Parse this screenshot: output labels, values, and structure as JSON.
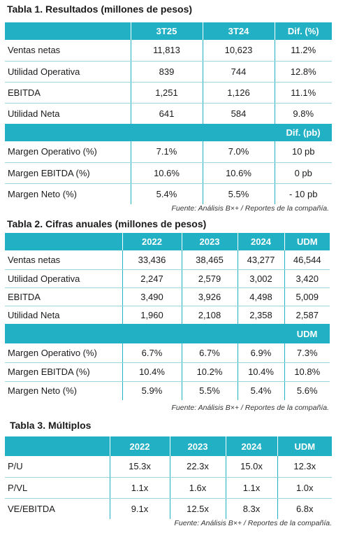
{
  "table1": {
    "title": "Tabla 1. Resultados (millones de pesos)",
    "headers": [
      "",
      "3T25",
      "3T24",
      "Dif. (%)"
    ],
    "rows": [
      [
        "Ventas netas",
        "11,813",
        "10,623",
        "11.2%"
      ],
      [
        "Utilidad Operativa",
        "839",
        "744",
        "12.8%"
      ],
      [
        "EBITDA",
        "1,251",
        "1,126",
        "11.1%"
      ],
      [
        "Utilidad Neta",
        "641",
        "584",
        "9.8%"
      ]
    ],
    "subheader": [
      "",
      "",
      "",
      "Dif. (pb)"
    ],
    "rows2": [
      [
        "Margen Operativo (%)",
        "7.1%",
        "7.0%",
        "10 pb"
      ],
      [
        "Margen EBITDA (%)",
        "10.6%",
        "10.6%",
        "0 pb"
      ],
      [
        "Margen Neto (%)",
        "5.4%",
        "5.5%",
        "- 10 pb"
      ]
    ],
    "source": "Fuente: Análisis B×+ / Reportes de la compañía."
  },
  "table2": {
    "title": "Tabla 2. Cifras anuales (millones de pesos)",
    "headers": [
      "",
      "2022",
      "2023",
      "2024",
      "UDM"
    ],
    "rows": [
      [
        "Ventas netas",
        "33,436",
        "38,465",
        "43,277",
        "46,544"
      ],
      [
        "Utilidad Operativa",
        "2,247",
        "2,579",
        "3,002",
        "3,420"
      ],
      [
        "EBITDA",
        "3,490",
        "3,926",
        "4,498",
        "5,009"
      ],
      [
        "Utilidad Neta",
        "1,960",
        "2,108",
        "2,358",
        "2,587"
      ]
    ],
    "subheader": [
      "",
      "",
      "",
      "",
      "UDM"
    ],
    "rows2": [
      [
        "Margen Operativo (%)",
        "6.7%",
        "6.7%",
        "6.9%",
        "7.3%"
      ],
      [
        "Margen EBITDA (%)",
        "10.4%",
        "10.2%",
        "10.4%",
        "10.8%"
      ],
      [
        "Margen Neto (%)",
        "5.9%",
        "5.5%",
        "5.4%",
        "5.6%"
      ]
    ],
    "source": "Fuente: Análisis B×+ / Reportes de la compañía."
  },
  "table3": {
    "title": "Tabla 3. Múltiplos",
    "headers": [
      "",
      "2022",
      "2023",
      "2024",
      "UDM"
    ],
    "rows": [
      [
        "P/U",
        "15.3x",
        "22.3x",
        "15.0x",
        "12.3x"
      ],
      [
        "P/VL",
        "1.1x",
        "1.6x",
        "1.1x",
        "1.0x"
      ],
      [
        "VE/EBITDA",
        "9.1x",
        "12.5x",
        "8.3x",
        "6.8x"
      ]
    ],
    "source": "Fuente: Análisis B×+ / Reportes de la compañía."
  }
}
